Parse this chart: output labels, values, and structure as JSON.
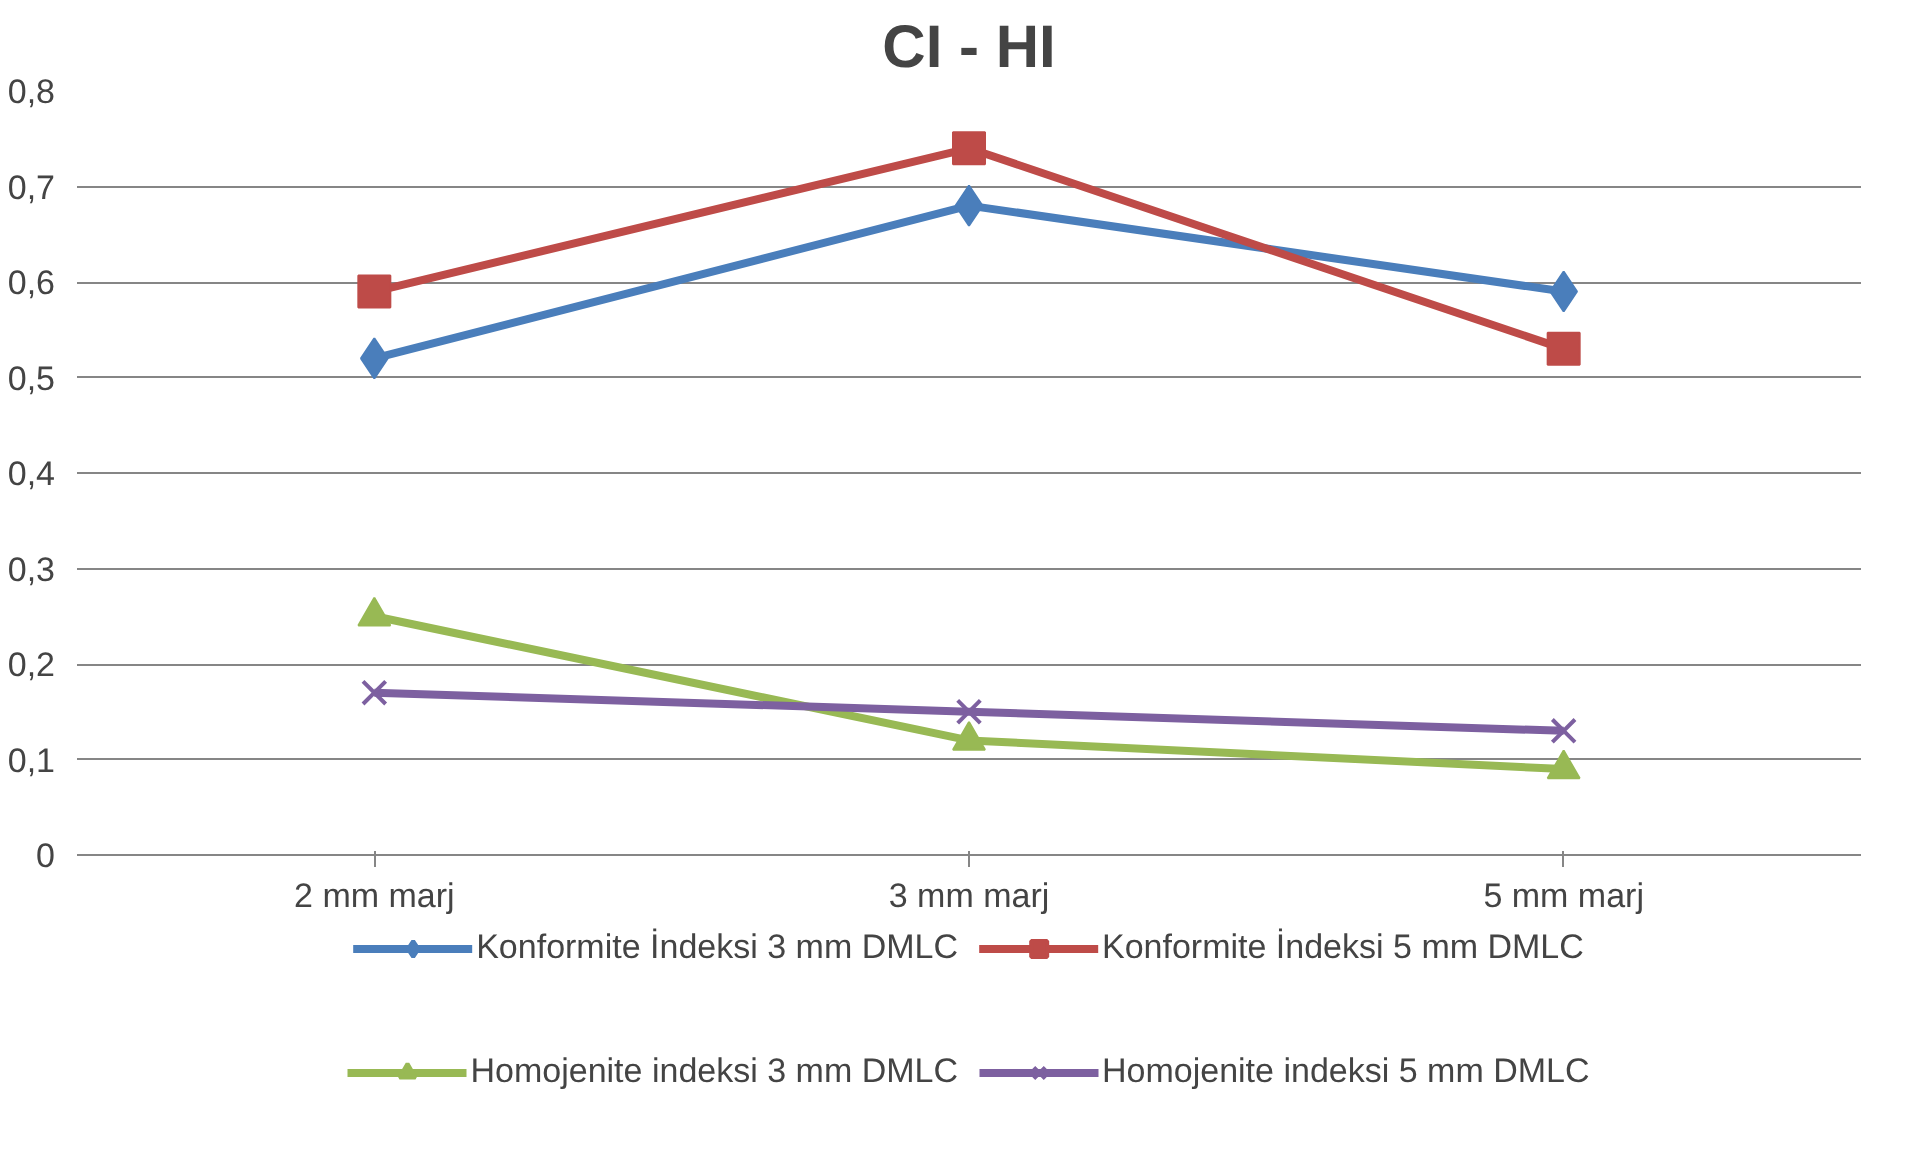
{
  "chart_data": {
    "type": "line",
    "title": "CI - HI",
    "categories": [
      "2 mm marj",
      "3 mm marj",
      "5 mm marj"
    ],
    "series": [
      {
        "name": "Konformite İndeksi 3 mm DMLC",
        "color": "#4a7ebb",
        "marker": "diamond",
        "values": [
          0.52,
          0.68,
          0.59
        ]
      },
      {
        "name": "Konformite İndeksi 5 mm DMLC",
        "color": "#be4b48",
        "marker": "square",
        "values": [
          0.59,
          0.74,
          0.53
        ]
      },
      {
        "name": "Homojenite indeksi 3 mm DMLC",
        "color": "#98b954",
        "marker": "triangle",
        "values": [
          0.25,
          0.12,
          0.09
        ]
      },
      {
        "name": "Homojenite indeksi 5 mm DMLC",
        "color": "#7d60a0",
        "marker": "cross",
        "values": [
          0.17,
          0.15,
          0.13
        ]
      }
    ],
    "ylim": [
      0,
      0.8
    ],
    "yticks": [
      0,
      {
        "value": 0.1,
        "label": "0,1"
      },
      {
        "value": 0.2,
        "label": "0,2"
      },
      {
        "value": 0.3,
        "label": "0,3"
      },
      {
        "value": 0.4,
        "label": "0,4"
      },
      {
        "value": 0.5,
        "label": "0,5"
      },
      {
        "value": 0.6,
        "label": "0,6"
      },
      {
        "value": 0.7,
        "label": "0,7"
      },
      {
        "value": 0.8,
        "label": "0,8"
      }
    ],
    "grid": "y",
    "legend": "bottom",
    "line_style": "solid"
  }
}
